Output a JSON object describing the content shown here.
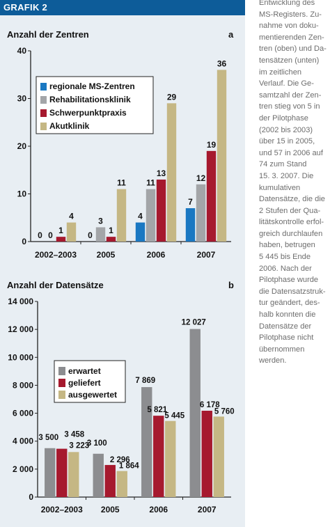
{
  "panel": {
    "title": "GRAFIK 2"
  },
  "caption_lines": [
    "Entwicklung des",
    "MS-Registers. Zu-",
    "nahme von doku-",
    "mentierenden Zen-",
    "tren (oben) und Da-",
    "tensätzen (unten)",
    "im zeitlichen",
    "Verlauf. Die Ge-",
    "samtzahl der Zen-",
    "tren stieg von 5 in",
    "der Pilotphase",
    "(2002 bis 2003)",
    "über 15 in 2005,",
    "und 57 in 2006 auf",
    "74 zum Stand",
    "15. 3. 2007. Die",
    "kumulativen",
    "Datensätze, die die",
    "2 Stufen der Qua-",
    "litätskontrolle erfol-",
    "greich durchlaufen",
    "haben, betrugen",
    "5 445 bis Ende",
    "2006. Nach der",
    "Pilotphase wurde",
    "die Datensatzstruk-",
    "tur geändert, des-",
    "halb konnten die",
    "Datensätze der",
    "Pilotphase nicht",
    "übernommen",
    "werden."
  ],
  "chart_data": [
    {
      "type": "bar",
      "title": "Anzahl der Zentren",
      "panel_letter": "a",
      "categories": [
        "2002–2003",
        "2005",
        "2006",
        "2007"
      ],
      "ylim": [
        0,
        40
      ],
      "yticks": [
        0,
        10,
        20,
        30,
        40
      ],
      "ytick_labels": [
        "0",
        "10",
        "20",
        "30",
        "40"
      ],
      "grid": false,
      "legend_position": "left",
      "series": [
        {
          "name": "regionale MS-Zentren",
          "color": "#1a78c2",
          "values": [
            0,
            0,
            4,
            7
          ],
          "labels": [
            "0",
            "0",
            "4",
            "7"
          ]
        },
        {
          "name": "Rehabilitationsklinik",
          "color": "#a3a5a8",
          "values": [
            0,
            3,
            11,
            12
          ],
          "labels": [
            "0",
            "3",
            "11",
            "12"
          ]
        },
        {
          "name": "Schwerpunktpraxis",
          "color": "#a6192e",
          "values": [
            1,
            1,
            13,
            19
          ],
          "labels": [
            "1",
            "1",
            "13",
            "19"
          ]
        },
        {
          "name": "Akutklinik",
          "color": "#c5b784",
          "values": [
            4,
            11,
            29,
            36
          ],
          "labels": [
            "4",
            "11",
            "29",
            "36"
          ]
        }
      ]
    },
    {
      "type": "bar",
      "title": "Anzahl der Datensätze",
      "panel_letter": "b",
      "categories": [
        "2002–2003",
        "2005",
        "2006",
        "2007"
      ],
      "ylim": [
        0,
        14000
      ],
      "yticks": [
        0,
        2000,
        4000,
        6000,
        8000,
        10000,
        12000,
        14000
      ],
      "ytick_labels": [
        "0",
        "2 000",
        "4 000",
        "6 000",
        "8 000",
        "10 000",
        "12 000",
        "14 000"
      ],
      "grid": false,
      "legend_position": "top-left",
      "series": [
        {
          "name": "erwartet",
          "color": "#8c8d90",
          "values": [
            3500,
            3100,
            7869,
            12027
          ],
          "labels": [
            "3 500",
            "3 100",
            "7 869",
            "12 027"
          ]
        },
        {
          "name": "geliefert",
          "color": "#a6192e",
          "values": [
            3458,
            2296,
            5821,
            6178
          ],
          "labels": [
            "3 458",
            "2 296",
            "5 821",
            "6 178"
          ]
        },
        {
          "name": "ausgewertet",
          "color": "#c5b784",
          "values": [
            3223,
            1864,
            5445,
            5760
          ],
          "labels": [
            "3 223",
            "1 864",
            "5 445",
            "5 760"
          ]
        }
      ]
    }
  ]
}
